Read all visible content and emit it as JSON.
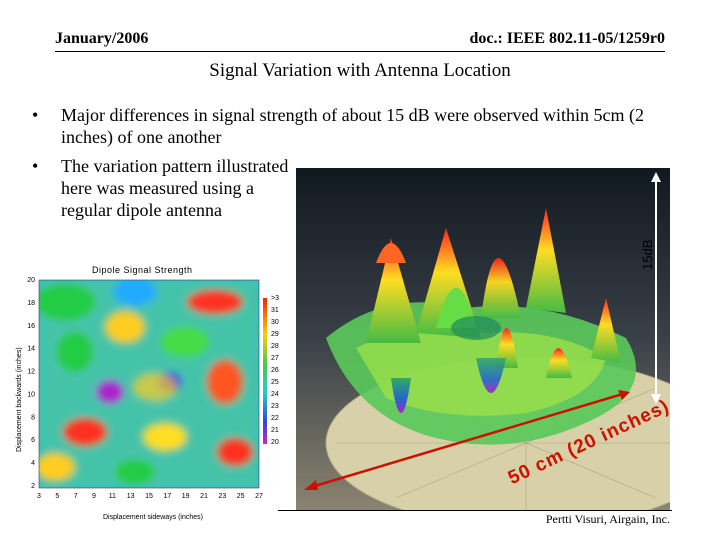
{
  "header": {
    "date": "January/2006",
    "doc": "doc.: IEEE 802.11-05/1259r0"
  },
  "title": "Signal Variation with Antenna Location",
  "bullets": [
    "Major differences in signal strength of about 15 dB were observed within 5cm (2 inches) of one another",
    "The variation pattern illustrated here was measured using a regular dipole antenna"
  ],
  "bullet_glyph": "•",
  "photo": {
    "vertical_label": "15dB",
    "distance_label": "50 cm (20 inches)"
  },
  "heatmap": {
    "title": "Dipole Signal Strength",
    "xlabel": "Displacement sideways (inches)",
    "ylabel": "Displacement backwards (inches)",
    "x_ticks": [
      "3",
      "5",
      "7",
      "9",
      "11",
      "13",
      "15",
      "17",
      "19",
      "21",
      "23",
      "25",
      "27"
    ],
    "y_ticks": [
      "20",
      "18",
      "16",
      "14",
      "12",
      "10",
      "8",
      "6",
      "4",
      "2"
    ],
    "colorbar_labels": [
      ">3",
      "31",
      "30",
      "29",
      "28",
      "27",
      "26",
      "25",
      "24",
      "23",
      "22",
      "21",
      "20"
    ]
  },
  "footer": {
    "author": "Pertti Visuri, Airgain, Inc."
  },
  "colors": {
    "arrow_red": "#cc1100",
    "surface_green": "#4cc44c"
  }
}
